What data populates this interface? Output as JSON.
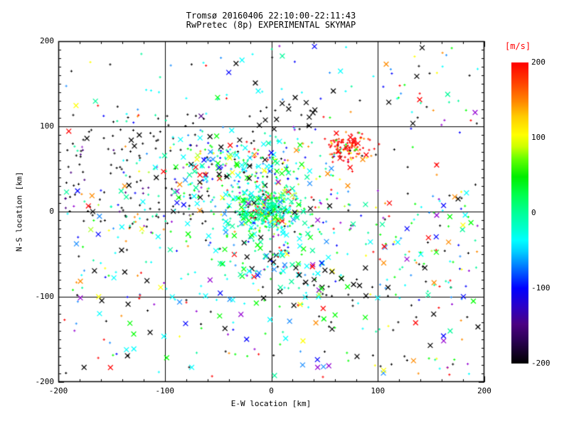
{
  "title": {
    "line1": "Tromsø 20160406 22:10:00-22:11:43",
    "line2": "RwPretec (8p) EXPERIMENTAL SKYMAP"
  },
  "axes": {
    "xlabel": "E-W location [km]",
    "ylabel": "N-S location [km]",
    "x_tick_labels": [
      "-200",
      "-100",
      "0",
      "100",
      "200"
    ],
    "x_tick_values": [
      -200,
      -100,
      0,
      100,
      200
    ],
    "y_tick_labels": [
      "200",
      "100",
      "0",
      "-100",
      "-200"
    ],
    "y_tick_values": [
      200,
      100,
      0,
      -100,
      -200
    ],
    "frame_color": "#000000"
  },
  "colorbar": {
    "label": "[m/s]",
    "label_color": "#ff0000",
    "tick_labels": [
      "200",
      "100",
      "0",
      "-100",
      "-200"
    ],
    "tick_values": [
      200,
      100,
      0,
      -100,
      -200
    ],
    "vmin": -200,
    "vmax": 200,
    "gradient": [
      [
        "0%",
        "#000000"
      ],
      [
        "8%",
        "#2d0057"
      ],
      [
        "13%",
        "#4b0082"
      ],
      [
        "19%",
        "#2a00c8"
      ],
      [
        "25%",
        "#0000ff"
      ],
      [
        "31%",
        "#0066ff"
      ],
      [
        "37%",
        "#00ccff"
      ],
      [
        "41%",
        "#00ffff"
      ],
      [
        "45%",
        "#00ffcc"
      ],
      [
        "50%",
        "#00ff99"
      ],
      [
        "56%",
        "#00ff4d"
      ],
      [
        "62%",
        "#00ee00"
      ],
      [
        "68%",
        "#66ff00"
      ],
      [
        "72%",
        "#ccff00"
      ],
      [
        "76%",
        "#ffff00"
      ],
      [
        "82%",
        "#ffcc00"
      ],
      [
        "87%",
        "#ff8800"
      ],
      [
        "93%",
        "#ff4400"
      ],
      [
        "100%",
        "#ff0000"
      ]
    ]
  },
  "chart_data": {
    "type": "scatter",
    "title": "Tromsø 20160406 22:10:00-22:11:43 / RwPretec (8p) EXPERIMENTAL SKYMAP",
    "xlabel": "E-W location [km]",
    "ylabel": "N-S location [km]",
    "xlim": [
      -200,
      200
    ],
    "ylim": [
      -200,
      200
    ],
    "grid_lines_x": [
      -100,
      0,
      100
    ],
    "grid_lines_y": [
      -100,
      0,
      100
    ],
    "x_minor_step": 20,
    "y_minor_step": 10,
    "major_step": 100,
    "color_scale_units": "m/s",
    "marker_types": [
      "small-plus-dot",
      "x-cross"
    ],
    "seed": 1234,
    "clusters": [
      {
        "name": "left-black-field",
        "count": 170,
        "dist": "uniform",
        "x": [
          -195,
          -55
        ],
        "y": [
          -15,
          115
        ],
        "x_marker_frac": 0.12,
        "colors": {
          "#000000": 62,
          "#4b0082": 12,
          "#0000ff": 8,
          "#00ffff": 5,
          "#00fa9a": 4,
          "#ff0000": 4,
          "#ff8c00": 2,
          "#9932cc": 3
        }
      },
      {
        "name": "upper-central-band",
        "count": 300,
        "dist": "gauss",
        "x": [
          -25,
          38
        ],
        "y": [
          52,
          22
        ],
        "x_marker_frac": 0.3,
        "colors": {
          "#00ffff": 20,
          "#00fa9a": 18,
          "#00ff00": 14,
          "#1e90ff": 10,
          "#0000ff": 8,
          "#000000": 8,
          "#ffff00": 6,
          "#ff8c00": 4,
          "#ff0000": 4,
          "#adff2f": 4,
          "#9400d3": 4
        }
      },
      {
        "name": "origin-cluster",
        "count": 380,
        "dist": "gauss",
        "x": [
          -3,
          16
        ],
        "y": [
          2,
          11
        ],
        "x_marker_frac": 0.18,
        "colors": {
          "#00fa9a": 45,
          "#00ff00": 18,
          "#00ffff": 12,
          "#adff2f": 5,
          "#ffff00": 5,
          "#000000": 5,
          "#1e90ff": 4,
          "#ff0000": 3,
          "#9400d3": 3
        }
      },
      {
        "name": "red-cluster-northeast",
        "count": 120,
        "dist": "gauss",
        "x": [
          73,
          11
        ],
        "y": [
          76,
          9
        ],
        "x_marker_frac": 0.1,
        "colors": {
          "#ff0000": 68,
          "#ff4500": 8,
          "#ff8c00": 10,
          "#00ff00": 5,
          "#000000": 4,
          "#ffff00": 5
        }
      },
      {
        "name": "top-sparse",
        "count": 80,
        "dist": "uniform",
        "x": [
          -195,
          195
        ],
        "y": [
          105,
          195
        ],
        "x_marker_frac": 0.25,
        "colors": {
          "#000000": 25,
          "#00ffff": 20,
          "#1e90ff": 10,
          "#0000ff": 8,
          "#00fa9a": 8,
          "#00ff00": 7,
          "#ff0000": 8,
          "#9400d3": 6,
          "#ffff00": 4,
          "#ff8c00": 4
        }
      },
      {
        "name": "black-x-north-mid",
        "count": 22,
        "dist": "gauss",
        "x": [
          20,
          18
        ],
        "y": [
          120,
          12
        ],
        "x_marker_frac": 0.7,
        "colors": {
          "#000000": 85,
          "#9400d3": 10,
          "#ffff00": 5
        }
      },
      {
        "name": "mid-wide-scatter",
        "count": 330,
        "dist": "uniform",
        "x": [
          -195,
          195
        ],
        "y": [
          -105,
          25
        ],
        "x_marker_frac": 0.3,
        "colors": {
          "#00ffff": 16,
          "#00fa9a": 13,
          "#00ff00": 12,
          "#1e90ff": 10,
          "#0000ff": 9,
          "#000000": 16,
          "#ff0000": 6,
          "#9400d3": 6,
          "#ffff00": 4,
          "#ff8c00": 4,
          "#adff2f": 4
        }
      },
      {
        "name": "below-origin-trail",
        "count": 130,
        "dist": "gauss",
        "x": [
          5,
          30
        ],
        "y": [
          -45,
          30
        ],
        "x_marker_frac": 0.35,
        "colors": {
          "#00ffff": 25,
          "#00fa9a": 20,
          "#00ff00": 15,
          "#0000ff": 12,
          "#1e90ff": 10,
          "#000000": 8,
          "#9400d3": 5,
          "#ff0000": 3,
          "#ffff00": 2
        }
      },
      {
        "name": "bottom-sparse",
        "count": 120,
        "dist": "uniform",
        "x": [
          -195,
          195
        ],
        "y": [
          -195,
          -105
        ],
        "x_marker_frac": 0.35,
        "colors": {
          "#000000": 22,
          "#00ff00": 15,
          "#00ffff": 14,
          "#1e90ff": 10,
          "#0000ff": 8,
          "#ff0000": 9,
          "#9400d3": 8,
          "#00fa9a": 8,
          "#ffff00": 3,
          "#ff8c00": 3
        }
      },
      {
        "name": "black-x-southeast",
        "count": 28,
        "dist": "gauss",
        "x": [
          52,
          22
        ],
        "y": [
          -88,
          18
        ],
        "x_marker_frac": 0.75,
        "colors": {
          "#000000": 75,
          "#ff0000": 10,
          "#9400d3": 5,
          "#00ff00": 10
        }
      },
      {
        "name": "east-sparse",
        "count": 55,
        "dist": "uniform",
        "x": [
          105,
          195
        ],
        "y": [
          -195,
          195
        ],
        "x_marker_frac": 0.3,
        "colors": {
          "#000000": 20,
          "#ff0000": 15,
          "#00ff00": 12,
          "#00ffff": 10,
          "#1e90ff": 8,
          "#0000ff": 8,
          "#ff8c00": 8,
          "#ffff00": 6,
          "#9400d3": 7,
          "#00fa9a": 6
        }
      }
    ]
  }
}
